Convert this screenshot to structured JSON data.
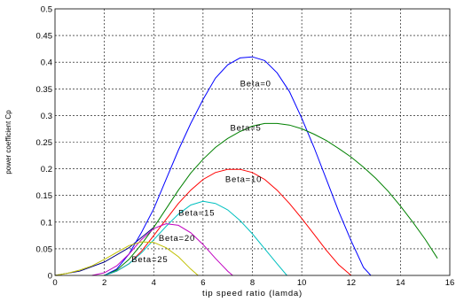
{
  "chart_data": {
    "type": "line",
    "xlabel": "tip speed ratio (lamda)",
    "ylabel": "power coefficient Cp",
    "xlim": [
      0,
      16
    ],
    "ylim": [
      0,
      0.5
    ],
    "xticks": [
      "0",
      "2",
      "4",
      "6",
      "8",
      "10",
      "12",
      "14",
      "16"
    ],
    "yticks": [
      "0",
      "0.05",
      "0.1",
      "0.15",
      "0.2",
      "0.25",
      "0.3",
      "0.35",
      "0.4",
      "0.45",
      "0.5"
    ],
    "grid": true,
    "series": [
      {
        "name": "Beta=0",
        "color": "#0000ff",
        "x": [
          2,
          2.5,
          3,
          3.5,
          4,
          4.5,
          5,
          5.5,
          6,
          6.5,
          7,
          7.5,
          8,
          8.5,
          9,
          9.5,
          10,
          10.5,
          11,
          11.5,
          12,
          12.5,
          12.8
        ],
        "y": [
          0.0,
          0.012,
          0.04,
          0.08,
          0.125,
          0.18,
          0.235,
          0.285,
          0.33,
          0.37,
          0.395,
          0.408,
          0.41,
          0.403,
          0.38,
          0.345,
          0.295,
          0.24,
          0.18,
          0.12,
          0.065,
          0.015,
          0.0
        ]
      },
      {
        "name": "Beta=5",
        "color": "#008000",
        "x": [
          2,
          2.5,
          3,
          3.5,
          4,
          4.5,
          5,
          5.5,
          6,
          6.5,
          7,
          7.5,
          8,
          8.5,
          9,
          9.5,
          10,
          10.5,
          11,
          11.5,
          12,
          12.5,
          13,
          13.5,
          14,
          14.5,
          15,
          15.5
        ],
        "y": [
          0.0,
          0.01,
          0.03,
          0.058,
          0.09,
          0.125,
          0.16,
          0.192,
          0.218,
          0.24,
          0.257,
          0.27,
          0.28,
          0.285,
          0.285,
          0.282,
          0.275,
          0.265,
          0.253,
          0.238,
          0.222,
          0.203,
          0.182,
          0.158,
          0.13,
          0.1,
          0.068,
          0.032
        ]
      },
      {
        "name": "Beta=10",
        "color": "#ff0000",
        "x": [
          2,
          2.5,
          3,
          3.5,
          4,
          4.5,
          5,
          5.5,
          6,
          6.5,
          7,
          7.5,
          8,
          8.5,
          9,
          9.5,
          10,
          10.5,
          11,
          11.5,
          12
        ],
        "y": [
          0.0,
          0.008,
          0.022,
          0.045,
          0.075,
          0.105,
          0.135,
          0.16,
          0.18,
          0.193,
          0.199,
          0.199,
          0.193,
          0.18,
          0.16,
          0.135,
          0.107,
          0.077,
          0.047,
          0.02,
          0.0
        ]
      },
      {
        "name": "Beta=15",
        "color": "#00c0c0",
        "x": [
          2,
          2.5,
          3,
          3.5,
          4,
          4.5,
          5,
          5.5,
          6,
          6.5,
          7,
          7.5,
          8,
          8.5,
          9,
          9.4
        ],
        "y": [
          0.0,
          0.008,
          0.022,
          0.042,
          0.067,
          0.092,
          0.115,
          0.132,
          0.139,
          0.135,
          0.123,
          0.103,
          0.078,
          0.05,
          0.022,
          0.0
        ]
      },
      {
        "name": "Beta=20",
        "color": "#c000c0",
        "x": [
          1.5,
          2,
          2.5,
          3,
          3.5,
          4,
          4.5,
          5,
          5.5,
          6,
          6.5,
          7,
          7.2
        ],
        "y": [
          0.0,
          0.005,
          0.018,
          0.04,
          0.067,
          0.088,
          0.097,
          0.094,
          0.08,
          0.058,
          0.032,
          0.008,
          0.0
        ]
      },
      {
        "name": "Beta=25",
        "color": "#c0c000",
        "x": [
          0,
          0.5,
          1,
          1.5,
          2,
          2.5,
          3,
          3.5,
          4,
          4.5,
          5,
          5.5,
          5.8
        ],
        "y": [
          0.0,
          0.004,
          0.01,
          0.018,
          0.03,
          0.043,
          0.056,
          0.063,
          0.062,
          0.052,
          0.035,
          0.012,
          0.0
        ]
      }
    ],
    "extra_lines": [
      {
        "color": "#000080",
        "x": [
          0,
          1,
          2,
          3,
          4
        ],
        "y": [
          0.0,
          0.008,
          0.025,
          0.052,
          0.09
        ]
      }
    ],
    "annotations": [
      {
        "text": "Beta=0",
        "x": 7.5,
        "y": 0.355
      },
      {
        "text": "Beta=5",
        "x": 7.1,
        "y": 0.272
      },
      {
        "text": "Beta=10",
        "x": 6.9,
        "y": 0.175
      },
      {
        "text": "Beta=15",
        "x": 5.0,
        "y": 0.112
      },
      {
        "text": "Beta=20",
        "x": 4.2,
        "y": 0.065
      },
      {
        "text": "Beta=25",
        "x": 3.1,
        "y": 0.025
      }
    ]
  }
}
